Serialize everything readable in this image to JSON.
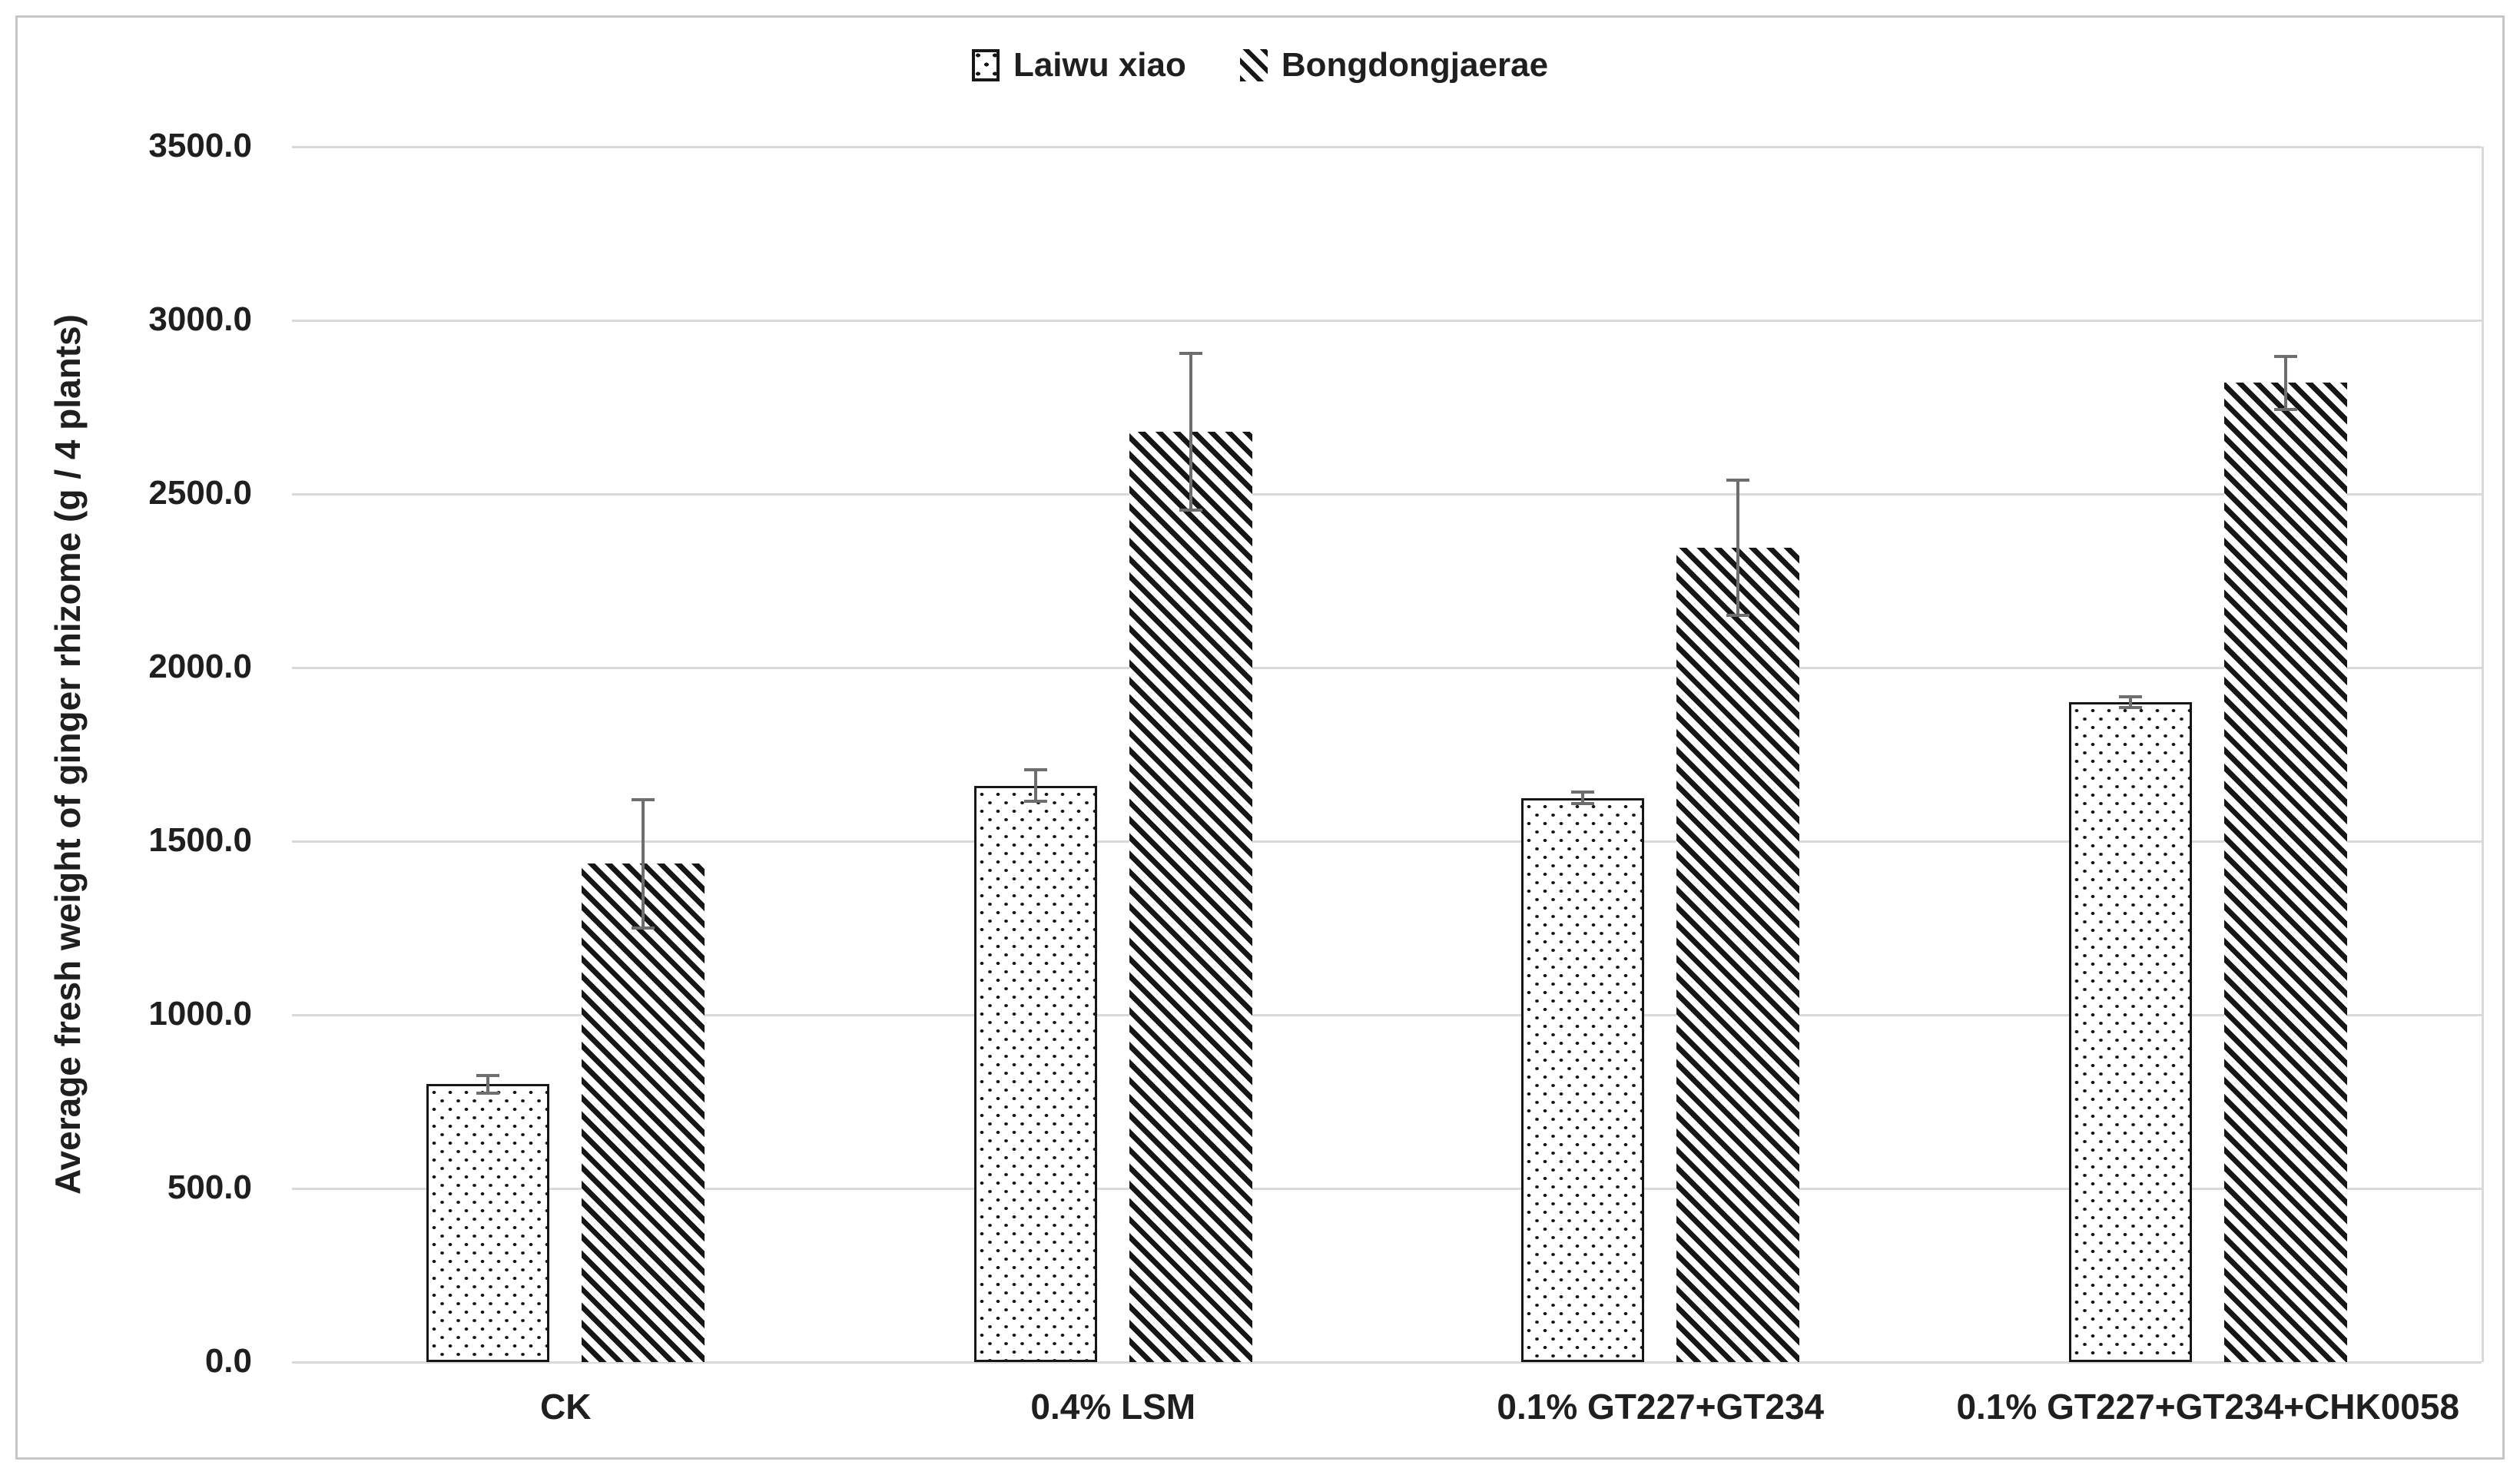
{
  "figure": {
    "background_color": "#ffffff",
    "border_color": "#c6c6c6"
  },
  "legend": {
    "position": "top-center",
    "items": [
      {
        "label": "Laiwu xiao",
        "pattern": "dotted",
        "swatch_icon": "dotted-square-icon"
      },
      {
        "label": "Bongdongjaerae",
        "pattern": "diagonal-hatch",
        "swatch_icon": "diagonal-hatch-icon"
      }
    ]
  },
  "chart_data": {
    "type": "bar",
    "title": "",
    "xlabel": "",
    "ylabel": "Average fresh weight of ginger rhizome (g / 4 plants)",
    "categories": [
      "CK",
      "0.4% LSM",
      "0.1% GT227+GT234",
      "0.1% GT227+GT234+CHK0058"
    ],
    "series": [
      {
        "name": "Laiwu xiao",
        "pattern": "dotted",
        "values": [
          800,
          1660,
          1625,
          1900
        ],
        "error_bars": [
          30,
          50,
          20,
          20
        ]
      },
      {
        "name": "Bongdongjaerae",
        "pattern": "diagonal-hatch",
        "values": [
          1435,
          2680,
          2345,
          2820
        ],
        "error_bars": [
          190,
          230,
          200,
          80
        ]
      }
    ],
    "ylim": [
      0,
      3500
    ],
    "ytick_interval": 500,
    "ytick_labels": [
      "0.0",
      "500.0",
      "1000.0",
      "1500.0",
      "2000.0",
      "2500.0",
      "3000.0",
      "3500.0"
    ],
    "grid": true,
    "legend_position": "top-center",
    "colors": {
      "pattern_ink": "#161616",
      "gridline": "#d9d9d9",
      "error_bar": "#6e6e6e",
      "text": "#1f1f1f"
    }
  }
}
